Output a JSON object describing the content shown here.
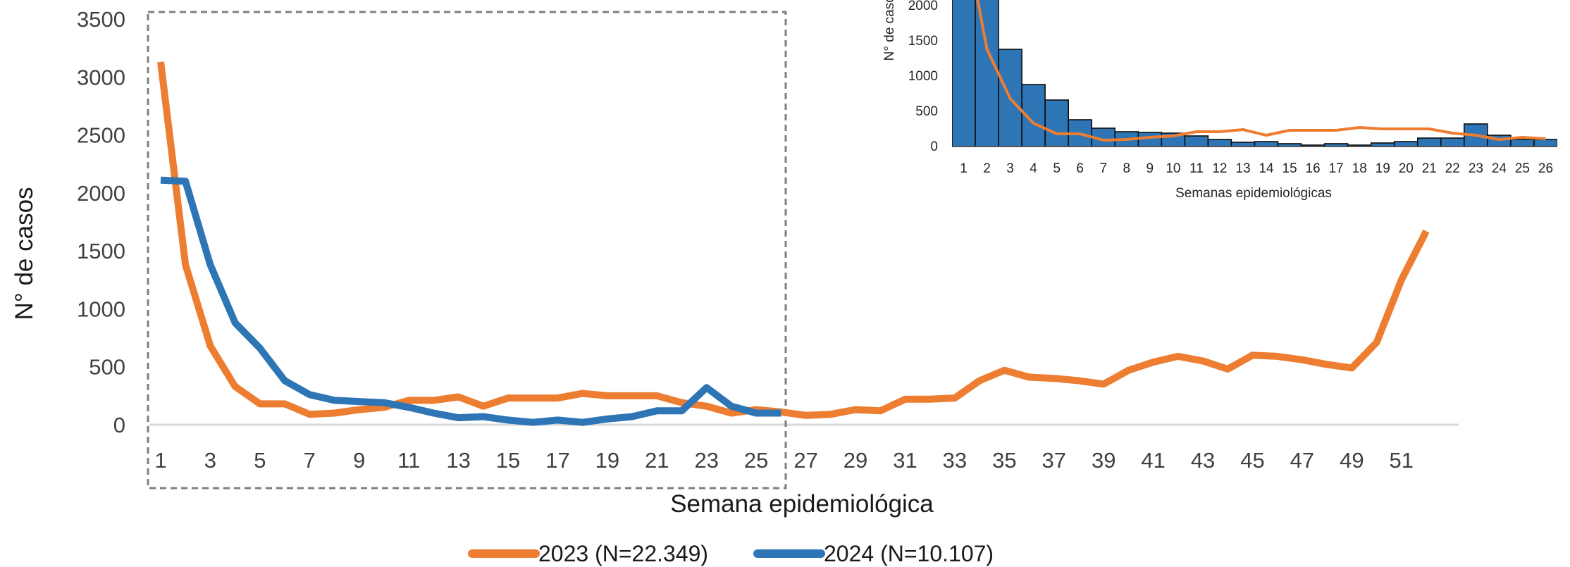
{
  "chart_data": [
    {
      "type": "line",
      "xlabel": "Semana epidemiológica",
      "ylabel": "N° de casos",
      "ylim": [
        0,
        3500
      ],
      "xlim": [
        1,
        52
      ],
      "y_ticks": [
        "0",
        "500",
        "1000",
        "1500",
        "2000",
        "2500",
        "3000",
        "3500"
      ],
      "x_ticks": [
        "1",
        "3",
        "5",
        "7",
        "9",
        "11",
        "13",
        "15",
        "17",
        "19",
        "21",
        "23",
        "25",
        "27",
        "29",
        "31",
        "33",
        "35",
        "37",
        "39",
        "41",
        "43",
        "45",
        "47",
        "49",
        "51"
      ],
      "grid": false,
      "legend_position": "bottom",
      "highlight_box": "semanas 1–26",
      "series": [
        {
          "name": "2023 (N=22.349)",
          "color": "#ED7D31",
          "x": [
            1,
            2,
            3,
            4,
            5,
            6,
            7,
            8,
            9,
            10,
            11,
            12,
            13,
            14,
            15,
            16,
            17,
            18,
            19,
            20,
            21,
            22,
            23,
            24,
            25,
            26,
            27,
            28,
            29,
            30,
            31,
            32,
            33,
            34,
            35,
            36,
            37,
            38,
            39,
            40,
            41,
            42,
            43,
            44,
            45,
            46,
            47,
            48,
            49,
            50,
            51,
            52
          ],
          "values": [
            3130,
            1380,
            680,
            330,
            180,
            180,
            90,
            100,
            130,
            150,
            210,
            210,
            240,
            160,
            230,
            230,
            230,
            270,
            250,
            250,
            250,
            190,
            160,
            100,
            130,
            110,
            80,
            90,
            130,
            120,
            220,
            220,
            230,
            380,
            470,
            410,
            400,
            380,
            350,
            470,
            540,
            590,
            550,
            480,
            600,
            590,
            560,
            520,
            490,
            710,
            1250,
            1670
          ]
        },
        {
          "name": "2024 (N=10.107)",
          "color": "#2E75B6",
          "x": [
            1,
            2,
            3,
            4,
            5,
            6,
            7,
            8,
            9,
            10,
            11,
            12,
            13,
            14,
            15,
            16,
            17,
            18,
            19,
            20,
            21,
            22,
            23,
            24,
            25,
            26
          ],
          "values": [
            2110,
            2100,
            1380,
            880,
            660,
            380,
            260,
            210,
            200,
            190,
            150,
            100,
            60,
            70,
            40,
            20,
            40,
            20,
            50,
            70,
            120,
            120,
            320,
            160,
            100,
            100
          ]
        }
      ]
    },
    {
      "type": "bar",
      "overlay": "line",
      "xlabel": "Semanas epidemiológicas",
      "ylabel": "N° de casos",
      "ylim": [
        0,
        2000
      ],
      "y_ticks": [
        "0",
        "500",
        "1000",
        "1500",
        "2000"
      ],
      "categories": [
        "1",
        "2",
        "3",
        "4",
        "5",
        "6",
        "7",
        "8",
        "9",
        "10",
        "11",
        "12",
        "13",
        "14",
        "15",
        "16",
        "17",
        "18",
        "19",
        "20",
        "21",
        "22",
        "23",
        "24",
        "25",
        "26"
      ],
      "series": [
        {
          "name": "2024",
          "type": "bar",
          "color": "#2E75B6",
          "values": [
            2110,
            2100,
            1380,
            880,
            660,
            380,
            260,
            210,
            200,
            190,
            150,
            100,
            60,
            70,
            40,
            20,
            40,
            20,
            50,
            70,
            120,
            120,
            320,
            160,
            100,
            100
          ]
        },
        {
          "name": "2023",
          "type": "line",
          "color": "#ED7D31",
          "values": [
            3130,
            1380,
            680,
            330,
            180,
            180,
            90,
            100,
            130,
            150,
            210,
            210,
            240,
            160,
            230,
            230,
            230,
            270,
            250,
            250,
            250,
            190,
            160,
            100,
            130,
            110
          ]
        }
      ]
    }
  ]
}
